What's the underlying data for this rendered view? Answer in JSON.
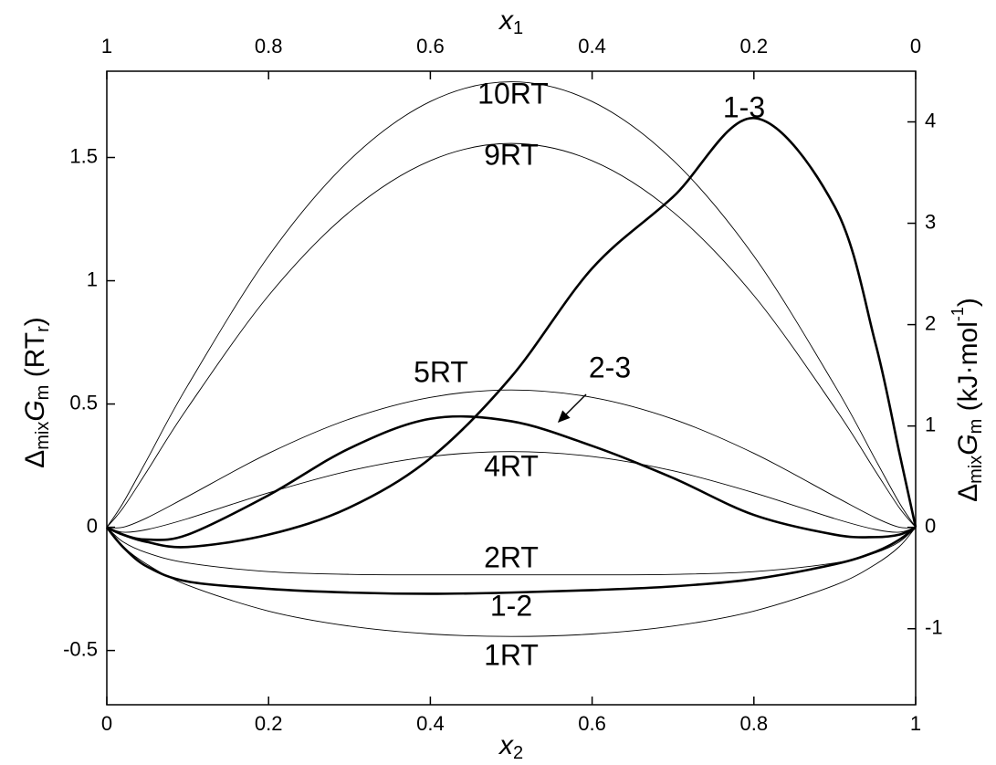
{
  "chart_data": {
    "type": "line",
    "x_label": [
      "x",
      "2"
    ],
    "x2_label": [
      "x",
      "1"
    ],
    "y_label": [
      "Δ",
      "mix",
      "G",
      "m",
      " (RT",
      "r",
      ")"
    ],
    "y2_label": [
      "Δ",
      "mix",
      "G",
      "m",
      " (kJ·mol",
      "-1",
      ")"
    ],
    "x": [
      0,
      0.02,
      0.05,
      0.1,
      0.2,
      0.3,
      0.4,
      0.5,
      0.6,
      0.7,
      0.8,
      0.9,
      0.95,
      0.98,
      1
    ],
    "series": [
      {
        "name": "10RT",
        "color": "#000000",
        "line_width": 0.9,
        "values": [
          0,
          0.098,
          0.276,
          0.575,
          1.1,
          1.489,
          1.727,
          1.807,
          1.727,
          1.489,
          1.1,
          0.575,
          0.276,
          0.098,
          0
        ]
      },
      {
        "name": "9RT",
        "color": "#000000",
        "line_width": 0.9,
        "values": [
          0,
          0.078,
          0.229,
          0.485,
          0.94,
          1.279,
          1.487,
          1.557,
          1.487,
          1.279,
          0.94,
          0.485,
          0.229,
          0.078,
          0
        ]
      },
      {
        "name": "5RT",
        "color": "#000000",
        "line_width": 0.9,
        "values": [
          0,
          0,
          0.039,
          0.125,
          0.3,
          0.439,
          0.527,
          0.557,
          0.527,
          0.439,
          0.3,
          0.125,
          0.039,
          0,
          0
        ]
      },
      {
        "name": "4RT",
        "color": "#000000",
        "line_width": 0.9,
        "values": [
          0,
          -0.02,
          -0.009,
          0.035,
          0.14,
          0.229,
          0.287,
          0.307,
          0.287,
          0.229,
          0.14,
          0.035,
          -0.009,
          -0.02,
          0
        ]
      },
      {
        "name": "2RT",
        "color": "#000000",
        "line_width": 0.9,
        "values": [
          0,
          -0.059,
          -0.104,
          -0.145,
          -0.18,
          -0.191,
          -0.193,
          -0.193,
          -0.193,
          -0.191,
          -0.18,
          -0.145,
          -0.104,
          -0.059,
          0
        ]
      },
      {
        "name": "1RT",
        "color": "#000000",
        "line_width": 0.9,
        "values": [
          0,
          -0.078,
          -0.151,
          -0.235,
          -0.34,
          -0.401,
          -0.433,
          -0.443,
          -0.433,
          -0.401,
          -0.34,
          -0.235,
          -0.151,
          -0.078,
          0
        ]
      },
      {
        "name": "1-3",
        "color": "#000000",
        "line_width": 2.6,
        "values": [
          0,
          -0.03,
          -0.06,
          -0.08,
          -0.03,
          0.08,
          0.28,
          0.61,
          1.05,
          1.34,
          1.66,
          1.3,
          0.75,
          0.3,
          0
        ]
      },
      {
        "name": "2-3",
        "color": "#000000",
        "line_width": 2.6,
        "values": [
          0,
          -0.03,
          -0.05,
          -0.03,
          0.13,
          0.32,
          0.44,
          0.43,
          0.33,
          0.2,
          0.05,
          -0.03,
          -0.04,
          -0.03,
          0
        ]
      },
      {
        "name": "1-2",
        "color": "#000000",
        "line_width": 2.6,
        "values": [
          0,
          -0.08,
          -0.16,
          -0.22,
          -0.25,
          -0.265,
          -0.27,
          -0.265,
          -0.255,
          -0.24,
          -0.21,
          -0.15,
          -0.1,
          -0.05,
          0
        ]
      }
    ],
    "xlim": [
      0,
      1
    ],
    "xticks": [
      0,
      0.2,
      0.4,
      0.6,
      0.8,
      1
    ],
    "x2lim": [
      1,
      0
    ],
    "x2ticks": [
      1,
      0.8,
      0.6,
      0.4,
      0.2,
      0
    ],
    "ylim": [
      -0.72,
      1.85
    ],
    "yticks": [
      -0.5,
      0,
      0.5,
      1,
      1.5
    ],
    "y2lim": [
      -1.75,
      4.5
    ],
    "y2ticks": [
      -1,
      0,
      1,
      2,
      3,
      4
    ],
    "grid": false
  }
}
